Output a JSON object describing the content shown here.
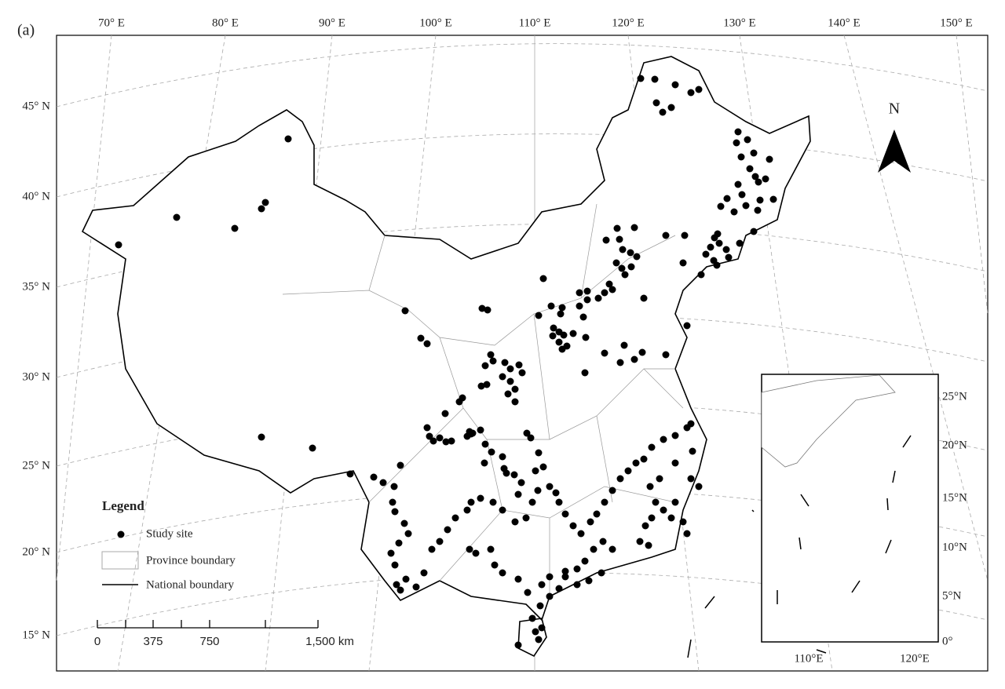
{
  "panel_label": "(a)",
  "longitude_labels": [
    "70° E",
    "80° E",
    "90° E",
    "100° E",
    "110° E",
    "120° E",
    "130° E",
    "140° E",
    "150° E"
  ],
  "latitude_labels": [
    "45° N",
    "40° N",
    "35° N",
    "30° N",
    "25° N",
    "20° N",
    "15° N"
  ],
  "north_label": "N",
  "legend": {
    "title": "Legend",
    "items": [
      "Study site",
      "Province boundary",
      "National boundary"
    ]
  },
  "scale_bar": {
    "labels": [
      "0",
      "375",
      "750",
      "1,500 km"
    ]
  },
  "inset": {
    "latitude_labels": [
      "25°N",
      "20°N",
      "15°N",
      "10°N",
      "5°N",
      "0°"
    ],
    "longitude_labels": [
      "110°E",
      "120°E"
    ]
  }
}
